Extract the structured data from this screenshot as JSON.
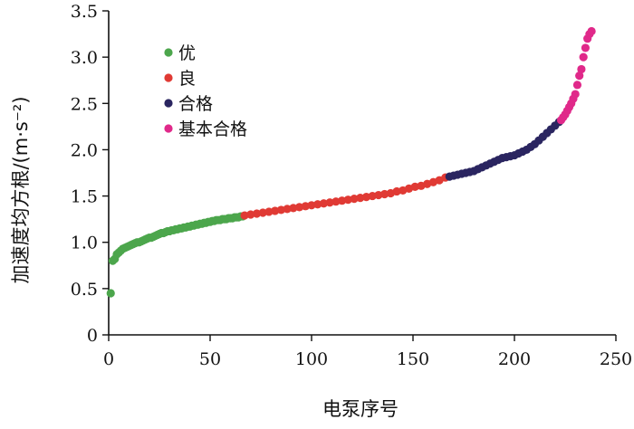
{
  "chart_data": {
    "type": "scatter",
    "title": "",
    "xlabel": "电泵序号",
    "ylabel": "加速度均方根/(m·s⁻²)",
    "xlim": [
      0,
      250
    ],
    "ylim": [
      0,
      3.5
    ],
    "xticks": [
      "0",
      "50",
      "100",
      "150",
      "200",
      "250"
    ],
    "yticks": [
      "0",
      "0.5",
      "1.0",
      "1.5",
      "2.0",
      "2.5",
      "3.0",
      "3.5"
    ],
    "legend_position": "top-left",
    "grid": false,
    "series": [
      {
        "name": "优",
        "color": "#4ca64c",
        "points": [
          [
            1,
            0.45
          ],
          [
            2,
            0.8
          ],
          [
            3,
            0.82
          ],
          [
            4,
            0.87
          ],
          [
            5,
            0.89
          ],
          [
            6,
            0.91
          ],
          [
            7,
            0.93
          ],
          [
            8,
            0.94
          ],
          [
            9,
            0.95
          ],
          [
            10,
            0.96
          ],
          [
            11,
            0.97
          ],
          [
            12,
            0.98
          ],
          [
            13,
            0.99
          ],
          [
            14,
            1.0
          ],
          [
            15,
            1.0
          ],
          [
            16,
            1.01
          ],
          [
            17,
            1.02
          ],
          [
            18,
            1.03
          ],
          [
            19,
            1.04
          ],
          [
            20,
            1.05
          ],
          [
            21,
            1.05
          ],
          [
            22,
            1.06
          ],
          [
            23,
            1.07
          ],
          [
            24,
            1.08
          ],
          [
            25,
            1.09
          ],
          [
            26,
            1.1
          ],
          [
            27,
            1.1
          ],
          [
            28,
            1.11
          ],
          [
            29,
            1.12
          ],
          [
            30,
            1.12
          ],
          [
            31,
            1.13
          ],
          [
            32,
            1.13
          ],
          [
            33,
            1.14
          ],
          [
            34,
            1.14
          ],
          [
            35,
            1.15
          ],
          [
            36,
            1.15
          ],
          [
            37,
            1.16
          ],
          [
            38,
            1.16
          ],
          [
            39,
            1.17
          ],
          [
            40,
            1.17
          ],
          [
            41,
            1.18
          ],
          [
            42,
            1.18
          ],
          [
            43,
            1.19
          ],
          [
            44,
            1.19
          ],
          [
            45,
            1.2
          ],
          [
            46,
            1.2
          ],
          [
            47,
            1.21
          ],
          [
            48,
            1.21
          ],
          [
            49,
            1.22
          ],
          [
            50,
            1.22
          ],
          [
            51,
            1.23
          ],
          [
            52,
            1.23
          ],
          [
            53,
            1.24
          ],
          [
            54,
            1.24
          ],
          [
            55,
            1.24
          ],
          [
            56,
            1.25
          ],
          [
            57,
            1.25
          ],
          [
            58,
            1.25
          ],
          [
            59,
            1.26
          ],
          [
            60,
            1.26
          ],
          [
            61,
            1.26
          ],
          [
            62,
            1.27
          ],
          [
            63,
            1.27
          ],
          [
            64,
            1.27
          ],
          [
            65,
            1.28
          ],
          [
            66,
            1.28
          ]
        ]
      },
      {
        "name": "良",
        "color": "#e03a34",
        "points": [
          [
            67,
            1.29
          ],
          [
            70,
            1.3
          ],
          [
            73,
            1.31
          ],
          [
            76,
            1.32
          ],
          [
            79,
            1.33
          ],
          [
            82,
            1.34
          ],
          [
            85,
            1.35
          ],
          [
            88,
            1.36
          ],
          [
            91,
            1.37
          ],
          [
            94,
            1.38
          ],
          [
            97,
            1.39
          ],
          [
            100,
            1.4
          ],
          [
            103,
            1.41
          ],
          [
            106,
            1.42
          ],
          [
            109,
            1.43
          ],
          [
            112,
            1.44
          ],
          [
            115,
            1.45
          ],
          [
            118,
            1.46
          ],
          [
            121,
            1.47
          ],
          [
            124,
            1.48
          ],
          [
            127,
            1.49
          ],
          [
            130,
            1.5
          ],
          [
            133,
            1.51
          ],
          [
            136,
            1.52
          ],
          [
            139,
            1.53
          ],
          [
            142,
            1.55
          ],
          [
            145,
            1.56
          ],
          [
            148,
            1.58
          ],
          [
            151,
            1.6
          ],
          [
            154,
            1.61
          ],
          [
            157,
            1.63
          ],
          [
            160,
            1.65
          ],
          [
            163,
            1.67
          ],
          [
            166,
            1.7
          ]
        ]
      },
      {
        "name": "合格",
        "color": "#2a2560",
        "points": [
          [
            168,
            1.71
          ],
          [
            170,
            1.72
          ],
          [
            172,
            1.73
          ],
          [
            174,
            1.74
          ],
          [
            176,
            1.75
          ],
          [
            178,
            1.76
          ],
          [
            180,
            1.77
          ],
          [
            182,
            1.79
          ],
          [
            184,
            1.81
          ],
          [
            186,
            1.83
          ],
          [
            188,
            1.85
          ],
          [
            190,
            1.87
          ],
          [
            192,
            1.89
          ],
          [
            194,
            1.91
          ],
          [
            196,
            1.92
          ],
          [
            198,
            1.93
          ],
          [
            200,
            1.94
          ],
          [
            202,
            1.96
          ],
          [
            204,
            1.98
          ],
          [
            206,
            2.0
          ],
          [
            208,
            2.03
          ],
          [
            210,
            2.06
          ],
          [
            212,
            2.1
          ],
          [
            214,
            2.14
          ],
          [
            216,
            2.18
          ],
          [
            218,
            2.22
          ],
          [
            220,
            2.26
          ],
          [
            222,
            2.3
          ]
        ]
      },
      {
        "name": "基本合格",
        "color": "#e0298a",
        "points": [
          [
            223,
            2.32
          ],
          [
            224,
            2.35
          ],
          [
            225,
            2.38
          ],
          [
            226,
            2.42
          ],
          [
            227,
            2.46
          ],
          [
            228,
            2.5
          ],
          [
            229,
            2.55
          ],
          [
            230,
            2.6
          ],
          [
            231,
            2.7
          ],
          [
            232,
            2.8
          ],
          [
            233,
            2.87
          ],
          [
            234,
            3.0
          ],
          [
            235,
            3.1
          ],
          [
            236,
            3.2
          ],
          [
            237,
            3.25
          ],
          [
            238,
            3.28
          ]
        ]
      }
    ]
  }
}
